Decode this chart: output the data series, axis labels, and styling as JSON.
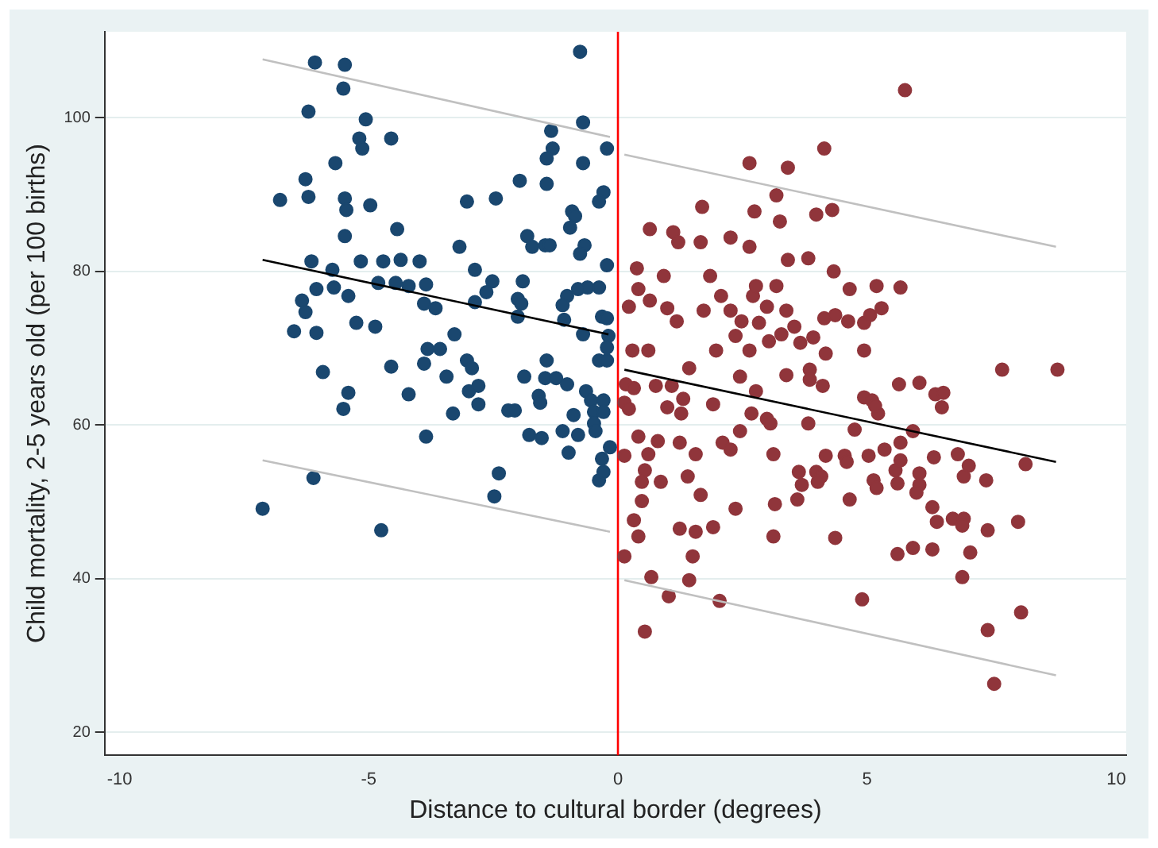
{
  "chart_data": {
    "type": "scatter",
    "xlabel": "Distance to cultural border (degrees)",
    "ylabel": "Child mortality, 2-5 years old (per 100 births)",
    "xlim": [
      -10.3,
      10.2
    ],
    "xticks": [
      -10,
      -5,
      0,
      5,
      10
    ],
    "ylim": [
      17,
      111.2
    ],
    "yticks": [
      20,
      40,
      60,
      80,
      100
    ],
    "grid": "y",
    "legend": false,
    "marker": "circle",
    "ref_lines": [
      {
        "axis": "x",
        "value": 0,
        "color": "#ff0000"
      }
    ],
    "series": [
      {
        "color": "#1a476f",
        "x": [
          -6.08,
          -5.48,
          -5.51,
          -6.21,
          -5.06,
          -5.19,
          -5.13,
          -4.55,
          -5.67,
          -6.27,
          -6.78,
          -6.21,
          -5.48,
          -5.45,
          -4.97,
          -4.43,
          -5.48,
          -6.15,
          -5.73,
          -5.16,
          -4.71,
          -4.36,
          -3.98,
          -6.05,
          -6.34,
          -6.27,
          -5.7,
          -5.41,
          -4.81,
          -4.46,
          -4.2,
          -3.85,
          -3.89,
          -3.66,
          -6.5,
          -6.05,
          -5.25,
          -4.87,
          -5.92,
          -5.41,
          -5.51,
          -4.55,
          -4.2,
          -3.82,
          -3.57,
          -3.89,
          -3.44,
          -3.28,
          -3.18,
          -2.87,
          -3.03,
          -2.45,
          -1.97,
          -2.87,
          -2.52,
          -2.64,
          -1.91,
          -2.01,
          -1.94,
          -2.01,
          -3.85,
          -3.31,
          -3.03,
          -2.93,
          -2.99,
          -2.8,
          -2.8,
          -2.2,
          -2.07,
          -1.88,
          -1.59,
          -1.56,
          -1.78,
          -1.53,
          -1.43,
          -1.46,
          -1.24,
          -1.02,
          -1.11,
          -0.99,
          -0.8,
          -0.89,
          -0.64,
          -0.54,
          -0.29,
          -0.48,
          -0.29,
          -0.48,
          -0.45,
          -0.32,
          -0.16,
          -0.38,
          -0.29,
          -2.39,
          -2.48,
          -6.11,
          -7.13,
          -4.75,
          -0.76,
          -0.7,
          -1.34,
          -1.31,
          -1.43,
          -0.7,
          -0.22,
          -1.43,
          -0.29,
          -0.38,
          -0.92,
          -0.86,
          -0.96,
          -1.82,
          -1.72,
          -1.46,
          -1.37,
          -0.67,
          -0.76,
          -0.22,
          -0.38,
          -0.61,
          -0.8,
          -1.02,
          -1.11,
          -1.08,
          -0.32,
          -0.22,
          -0.7,
          -0.19,
          -0.38,
          -0.22,
          -0.22
        ],
        "values": [
          107.2,
          106.9,
          103.8,
          100.8,
          99.8,
          97.3,
          96.0,
          97.3,
          94.1,
          92.0,
          89.3,
          89.7,
          89.5,
          88.0,
          88.6,
          85.5,
          84.6,
          81.3,
          80.2,
          81.3,
          81.3,
          81.5,
          81.3,
          77.7,
          76.2,
          74.7,
          77.9,
          76.8,
          78.5,
          78.5,
          78.1,
          78.3,
          75.8,
          75.2,
          72.2,
          72.0,
          73.3,
          72.8,
          66.9,
          64.2,
          62.1,
          67.6,
          64.0,
          69.9,
          69.9,
          68.0,
          66.3,
          71.8,
          83.2,
          80.2,
          89.1,
          89.5,
          91.8,
          76.0,
          78.7,
          77.3,
          78.7,
          76.4,
          75.8,
          74.1,
          58.5,
          61.5,
          68.4,
          67.4,
          64.4,
          65.1,
          62.7,
          61.9,
          61.9,
          66.3,
          63.8,
          62.9,
          58.7,
          58.3,
          68.4,
          66.1,
          66.1,
          65.3,
          59.2,
          56.4,
          58.7,
          61.3,
          64.4,
          63.2,
          63.2,
          61.7,
          61.7,
          60.2,
          59.2,
          55.6,
          57.1,
          52.8,
          53.9,
          53.7,
          50.7,
          53.1,
          49.1,
          46.3,
          108.6,
          99.4,
          98.3,
          96.0,
          94.7,
          94.1,
          96.0,
          91.4,
          90.3,
          89.1,
          87.8,
          87.2,
          85.7,
          84.6,
          83.2,
          83.4,
          83.4,
          83.4,
          82.3,
          80.8,
          77.9,
          77.9,
          77.7,
          76.8,
          75.6,
          73.7,
          74.1,
          73.9,
          71.8,
          71.6,
          68.4,
          68.4,
          70.1
        ]
      },
      {
        "color": "#90353b",
        "x": [
          5.76,
          4.14,
          2.64,
          3.41,
          3.18,
          1.69,
          2.74,
          3.98,
          4.3,
          3.25,
          0.64,
          1.11,
          1.21,
          1.66,
          2.26,
          2.64,
          3.41,
          3.82,
          4.33,
          0.38,
          0.92,
          1.85,
          0.41,
          0.64,
          0.22,
          0.99,
          1.18,
          1.72,
          2.07,
          2.26,
          2.71,
          2.77,
          2.99,
          3.18,
          3.38,
          2.48,
          2.83,
          2.36,
          3.03,
          3.28,
          3.54,
          3.66,
          3.92,
          4.14,
          4.36,
          4.65,
          4.62,
          4.94,
          5.06,
          5.29,
          5.19,
          5.67,
          1.97,
          2.64,
          4.17,
          4.94,
          0.29,
          0.61,
          1.43,
          2.45,
          3.38,
          3.85,
          3.85,
          4.11,
          2.77,
          0.16,
          0.32,
          0.76,
          1.08,
          1.31,
          0.99,
          1.27,
          1.91,
          0.13,
          0.22,
          2.68,
          2.99,
          3.06,
          3.82,
          4.75,
          4.94,
          5.1,
          5.22,
          5.16,
          5.64,
          6.05,
          6.37,
          6.53,
          6.5,
          5.92,
          5.67,
          5.35,
          5.03,
          4.55,
          4.59,
          4.17,
          3.12,
          2.45,
          2.1,
          2.26,
          1.24,
          1.56,
          0.8,
          0.61,
          0.41,
          0.13,
          0.54,
          0.48,
          0.86,
          1.4,
          1.66,
          0.48,
          0.32,
          0.41,
          1.24,
          1.56,
          1.91,
          2.36,
          3.15,
          3.6,
          3.63,
          3.69,
          3.98,
          4.08,
          4.01,
          4.65,
          5.13,
          5.19,
          5.61,
          5.57,
          5.67,
          6.05,
          6.05,
          5.99,
          6.34,
          6.82,
          7.04,
          6.94,
          7.39,
          6.31,
          6.4,
          6.72,
          6.94,
          6.91,
          7.42,
          8.03,
          8.18,
          7.71,
          8.82,
          4.36,
          3.12,
          5.61,
          5.92,
          6.31,
          7.07,
          6.91,
          1.5,
          1.43,
          0.67,
          0.13,
          1.02,
          2.04,
          4.9,
          0.54,
          7.42,
          8.09,
          7.55
        ],
        "values": [
          103.6,
          96.0,
          94.1,
          93.5,
          89.9,
          88.4,
          87.8,
          87.4,
          88.0,
          86.5,
          85.5,
          85.1,
          83.8,
          83.8,
          84.4,
          83.2,
          81.5,
          81.7,
          80.0,
          80.4,
          79.4,
          79.4,
          77.7,
          76.2,
          75.4,
          75.2,
          73.5,
          74.9,
          76.8,
          74.9,
          76.8,
          78.1,
          75.4,
          78.1,
          74.9,
          73.5,
          73.3,
          71.6,
          70.9,
          71.8,
          72.8,
          70.7,
          71.4,
          73.9,
          74.3,
          77.7,
          73.5,
          73.3,
          74.3,
          75.2,
          78.1,
          77.9,
          69.7,
          69.7,
          69.3,
          69.7,
          69.7,
          69.7,
          67.4,
          66.3,
          66.5,
          67.2,
          65.9,
          65.1,
          64.4,
          65.3,
          64.8,
          65.1,
          65.1,
          63.4,
          62.3,
          61.5,
          62.7,
          62.9,
          62.1,
          61.5,
          60.8,
          60.2,
          60.2,
          59.4,
          63.6,
          63.2,
          61.5,
          62.5,
          65.3,
          65.5,
          64.0,
          64.2,
          62.3,
          59.2,
          57.7,
          56.8,
          56.0,
          56.0,
          55.2,
          56.0,
          56.2,
          59.2,
          57.7,
          56.8,
          57.7,
          56.2,
          57.9,
          56.2,
          58.5,
          56.0,
          54.1,
          52.6,
          52.6,
          53.3,
          50.9,
          50.1,
          47.6,
          45.5,
          46.5,
          46.1,
          46.7,
          49.1,
          49.7,
          50.3,
          53.9,
          52.2,
          53.9,
          53.3,
          52.6,
          50.3,
          52.8,
          51.8,
          52.4,
          54.1,
          55.4,
          53.7,
          52.2,
          51.2,
          55.8,
          56.2,
          54.7,
          53.3,
          52.8,
          49.3,
          47.4,
          47.8,
          47.8,
          46.9,
          46.3,
          47.4,
          54.9,
          67.2,
          67.2,
          45.3,
          45.5,
          43.2,
          44.0,
          43.8,
          43.4,
          40.2,
          42.9,
          39.8,
          40.2,
          42.9,
          37.7,
          37.1,
          37.3,
          33.1,
          33.3,
          35.6,
          26.3
        ]
      },
      {
        "type": "line",
        "color": "#000000",
        "marker": "none",
        "x": [
          -7.13,
          -0.19
        ],
        "values": [
          81.5,
          71.8
        ]
      },
      {
        "type": "line",
        "color": "#000000",
        "marker": "none",
        "x": [
          0.13,
          8.79
        ],
        "values": [
          67.2,
          55.2
        ]
      },
      {
        "type": "line",
        "color": "#c0c0c0",
        "marker": "none",
        "x": [
          -7.13,
          -0.16
        ],
        "values": [
          107.6,
          97.5
        ]
      },
      {
        "type": "line",
        "color": "#c0c0c0",
        "marker": "none",
        "x": [
          -7.13,
          -0.16
        ],
        "values": [
          55.4,
          46.1
        ]
      },
      {
        "type": "line",
        "color": "#c0c0c0",
        "marker": "none",
        "x": [
          0.13,
          8.79
        ],
        "values": [
          95.2,
          83.2
        ]
      },
      {
        "type": "line",
        "color": "#c0c0c0",
        "marker": "none",
        "x": [
          0.13,
          8.79
        ],
        "values": [
          39.8,
          27.4
        ]
      }
    ]
  }
}
